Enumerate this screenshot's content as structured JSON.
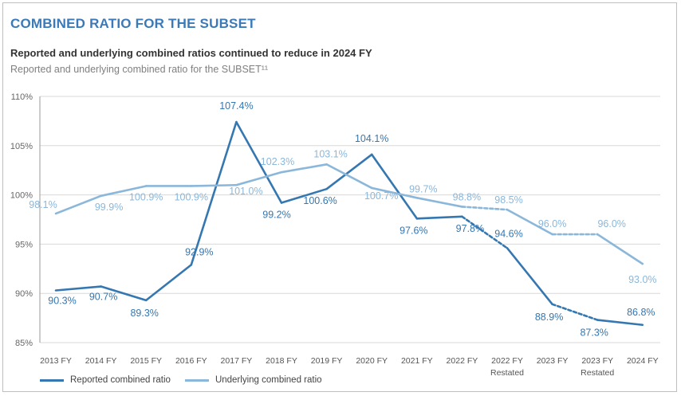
{
  "header": {
    "title": "COMBINED RATIO FOR THE SUBSET",
    "subtitle": "Reported and underlying combined ratios continued to reduce in 2024 FY",
    "caption": "Reported and underlying combined ratio for the SUBSET¹¹"
  },
  "colors": {
    "reported": "#3577b0",
    "underlying": "#8ab7da",
    "grid": "#d8d8d8",
    "axis_text": "#666666"
  },
  "chart_data": {
    "type": "line",
    "title": "",
    "xlabel": "",
    "ylabel": "",
    "ylim": [
      85,
      110
    ],
    "y_ticks": [
      85,
      90,
      95,
      100,
      105,
      110
    ],
    "y_tick_labels": [
      "85%",
      "90%",
      "95%",
      "100%",
      "105%",
      "110%"
    ],
    "grid": true,
    "legend_position": "bottom-left",
    "categories": [
      [
        "2013 FY"
      ],
      [
        "2014 FY"
      ],
      [
        "2015 FY"
      ],
      [
        "2016 FY"
      ],
      [
        "2017 FY"
      ],
      [
        "2018 FY"
      ],
      [
        "2019 FY"
      ],
      [
        "2020 FY"
      ],
      [
        "2021 FY"
      ],
      [
        "2022 FY"
      ],
      [
        "2022 FY",
        "Restated"
      ],
      [
        "2023 FY"
      ],
      [
        "2023 FY",
        "Restated"
      ],
      [
        "2024 FY"
      ]
    ],
    "series": [
      {
        "name": "Reported combined ratio",
        "key": "reported",
        "values": [
          90.3,
          90.7,
          89.3,
          92.9,
          107.4,
          99.2,
          100.6,
          104.1,
          97.6,
          97.8,
          94.6,
          88.9,
          87.3,
          86.8
        ],
        "labels": [
          "90.3%",
          "90.7%",
          "89.3%",
          "92.9%",
          "107.4%",
          "99.2%",
          "100.6%",
          "104.1%",
          "97.6%",
          "97.8%",
          "94.6%",
          "88.9%",
          "87.3%",
          "86.8%"
        ],
        "dashed_segments": [
          9,
          11
        ]
      },
      {
        "name": "Underlying combined ratio",
        "key": "underlying",
        "values": [
          98.1,
          99.9,
          100.9,
          100.9,
          101.0,
          102.3,
          103.1,
          100.7,
          99.7,
          98.8,
          98.5,
          96.0,
          96.0,
          93.0
        ],
        "labels": [
          "98.1%",
          "99.9%",
          "100.9%",
          "100.9%",
          "101.0%",
          "102.3%",
          "103.1%",
          "100.7%",
          "99.7%",
          "98.8%",
          "98.5%",
          "96.0%",
          "96.0%",
          "93.0%"
        ],
        "dashed_segments": [
          9,
          11
        ]
      }
    ]
  }
}
